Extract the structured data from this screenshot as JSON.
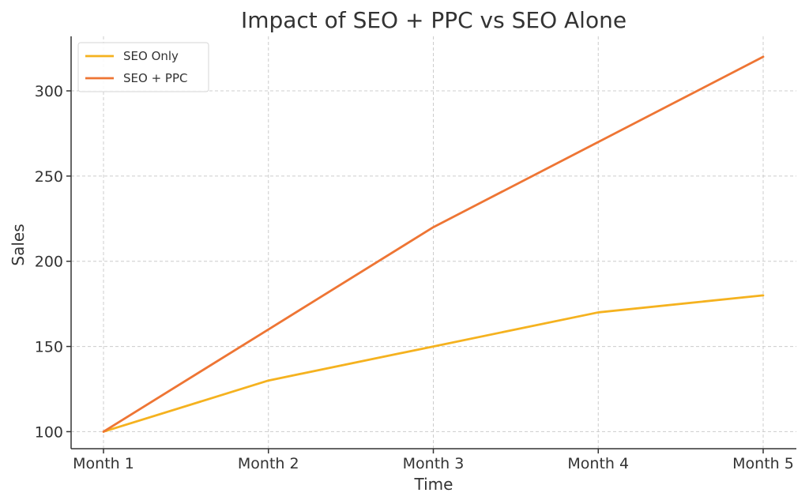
{
  "chart_data": {
    "type": "line",
    "title": "Impact of SEO + PPC vs SEO Alone",
    "xlabel": "Time",
    "ylabel": "Sales",
    "categories": [
      "Month 1",
      "Month 2",
      "Month 3",
      "Month 4",
      "Month 5"
    ],
    "ylim": [
      90,
      332
    ],
    "yticks": [
      100,
      150,
      200,
      250,
      300
    ],
    "grid": true,
    "legend_position": "top-left",
    "series": [
      {
        "name": "SEO Only",
        "color": "#f5b21f",
        "values": [
          100,
          130,
          150,
          170,
          180
        ]
      },
      {
        "name": "SEO + PPC",
        "color": "#ee7534",
        "values": [
          100,
          160,
          220,
          270,
          320
        ]
      }
    ]
  }
}
